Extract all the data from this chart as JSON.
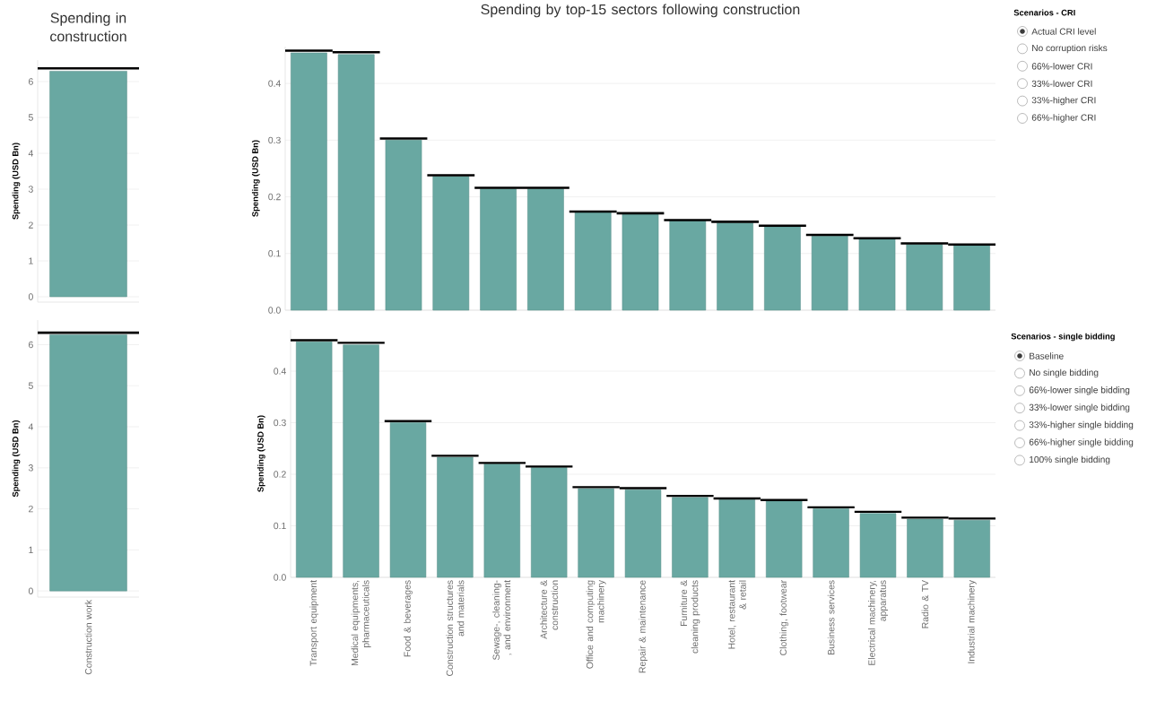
{
  "chart_data": [
    {
      "type": "bar",
      "title": "Spending in construction",
      "ylabel": "Spending (USD Bn)",
      "categories": [
        null
      ],
      "grid": "y",
      "ylim": [
        -0.15,
        6.6
      ],
      "yticks": [
        0,
        1,
        2,
        3,
        4,
        5,
        6
      ],
      "series": [
        {
          "type": "bar",
          "color": "#69a8a2",
          "values": [
            6.29
          ]
        },
        {
          "type": "bar",
          "color": "#000000",
          "base": [
            6.34
          ],
          "values": [
            0.06
          ]
        }
      ]
    },
    {
      "type": "bar",
      "title": "Spending by top-15 sectors following construction",
      "ylabel": "Spending (USD Bn)",
      "categories": [
        null,
        null,
        null,
        null,
        null,
        null,
        null,
        null,
        null,
        null,
        null,
        null,
        null,
        null,
        null
      ],
      "grid": "y",
      "ylim": [
        0,
        0.465
      ],
      "yticks": [
        {
          "value": 0,
          "label": "0.0"
        },
        0.1,
        0.2,
        0.3,
        0.4
      ],
      "series": [
        {
          "type": "bar",
          "color": "#69a8a2",
          "values": [
            0.454,
            0.451,
            0.3,
            0.236,
            0.214,
            0.214,
            0.173,
            0.17,
            0.158,
            0.154,
            0.147,
            0.131,
            0.125,
            0.116,
            0.114
          ]
        },
        {
          "type": "bar",
          "color": "#000000",
          "base": [
            0.456,
            0.453,
            0.301,
            0.236,
            0.214,
            0.214,
            0.172,
            0.169,
            0.157,
            0.154,
            0.147,
            0.131,
            0.125,
            0.116,
            0.114
          ],
          "values": [
            0.004,
            0.004,
            0.004,
            0.004,
            0.004,
            0.004,
            0.004,
            0.004,
            0.004,
            0.004,
            0.004,
            0.004,
            0.004,
            0.004,
            0.004
          ]
        }
      ]
    },
    {
      "type": "other",
      "title": "Scenarios - CRI",
      "annotations": [
        "Actual CRI level",
        "No corruption risks",
        "66%-lower CRI",
        "33%-lower CRI",
        "33%-higher CRI",
        "66%-higher CRI"
      ]
    },
    {
      "type": "bar",
      "ylabel": "Spending (USD Bn)",
      "categories": [
        "Construction work"
      ],
      "grid": "y",
      "ylim": [
        -0.15,
        6.6
      ],
      "yticks": [
        0,
        1,
        2,
        3,
        4,
        5,
        6
      ],
      "series": [
        {
          "type": "bar",
          "color": "#69a8a2",
          "values": [
            6.24
          ]
        },
        {
          "type": "bar",
          "color": "#000000",
          "base": [
            6.26
          ],
          "values": [
            0.06
          ]
        }
      ]
    },
    {
      "type": "bar",
      "ylabel": "Spending (USD Bn)",
      "categories": [
        "Transport equipment",
        "Medical equipments, pharmaceuticals",
        "Food & beverages",
        "Construction structures and materials",
        "Sewage-, cleaning-, and environment",
        "Architecture & construction",
        "Office and computing machinery",
        "Repair & maintenance",
        "Furniture & cleaning products",
        "Hotel, restaurant & retail",
        "Clothing, footwear",
        "Business services",
        "Electrical machinery, apparatus",
        "Radio & TV",
        "Industrial machinery"
      ],
      "grid": "y",
      "ylim": [
        0,
        0.48
      ],
      "yticks": [
        {
          "value": 0,
          "label": "0.0"
        },
        0.1,
        0.2,
        0.3,
        0.4
      ],
      "series": [
        {
          "type": "bar",
          "color": "#69a8a2",
          "values": [
            0.457,
            0.451,
            0.3,
            0.233,
            0.22,
            0.213,
            0.172,
            0.17,
            0.155,
            0.151,
            0.148,
            0.133,
            0.124,
            0.113,
            0.111
          ]
        },
        {
          "type": "bar",
          "color": "#000000",
          "base": [
            0.458,
            0.453,
            0.301,
            0.234,
            0.22,
            0.213,
            0.173,
            0.171,
            0.156,
            0.151,
            0.148,
            0.134,
            0.125,
            0.114,
            0.112
          ],
          "values": [
            0.004,
            0.004,
            0.004,
            0.004,
            0.004,
            0.004,
            0.004,
            0.004,
            0.004,
            0.004,
            0.004,
            0.004,
            0.004,
            0.004,
            0.004
          ]
        }
      ]
    },
    {
      "type": "other",
      "title": "Scenarios - single bidding",
      "annotations": [
        "Baseline",
        "No single bidding",
        "66%-lower single bidding",
        "33%-lower single bidding",
        "33%-higher single bidding",
        "66%-higher single bidding",
        "100% single bidding"
      ]
    }
  ]
}
